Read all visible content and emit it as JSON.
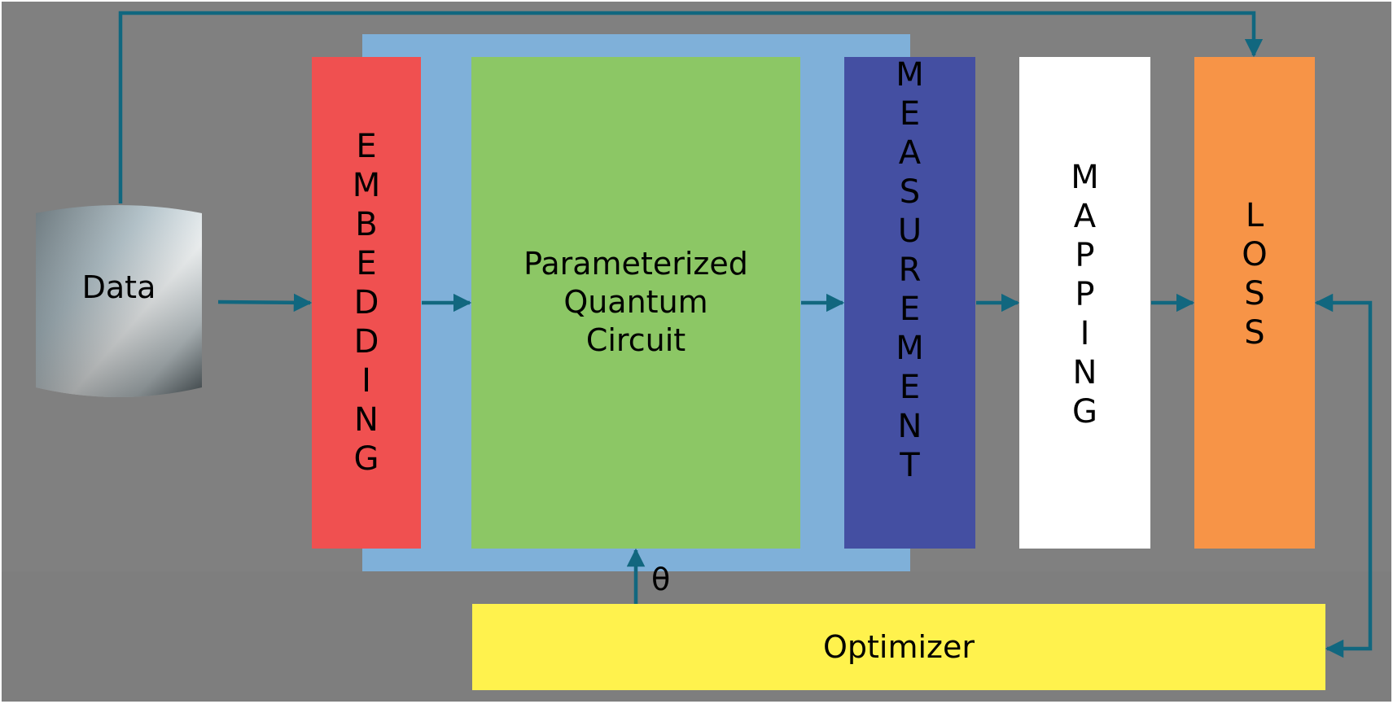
{
  "colors": {
    "background": "#808080",
    "panel": "#7fb0d9",
    "embedding": "#f05050",
    "circuit": "#8cc765",
    "measurement": "#444fa2",
    "mapping": "#ffffff",
    "loss": "#f79447",
    "optimizer": "#fff24d",
    "arrow": "#11677f"
  },
  "nodes": {
    "data": {
      "label": "Data",
      "icon": "database-cylinder-icon"
    },
    "embedding": {
      "label": "EMBEDDING"
    },
    "circuit": {
      "label": "Parameterized\nQuantum\nCircuit"
    },
    "measurement": {
      "label": "MEASUREMENT"
    },
    "mapping": {
      "label": "MAPPING"
    },
    "loss": {
      "label": "LOSS"
    },
    "optimizer": {
      "label": "Optimizer"
    }
  },
  "edges": [
    {
      "from": "data",
      "to": "embedding"
    },
    {
      "from": "embedding",
      "to": "circuit"
    },
    {
      "from": "circuit",
      "to": "measurement"
    },
    {
      "from": "measurement",
      "to": "mapping"
    },
    {
      "from": "mapping",
      "to": "loss"
    },
    {
      "from": "data",
      "to": "loss"
    },
    {
      "from": "loss",
      "to": "optimizer"
    },
    {
      "from": "optimizer",
      "to": "loss"
    },
    {
      "from": "optimizer",
      "to": "circuit",
      "label": "θ"
    }
  ],
  "theta": "θ"
}
